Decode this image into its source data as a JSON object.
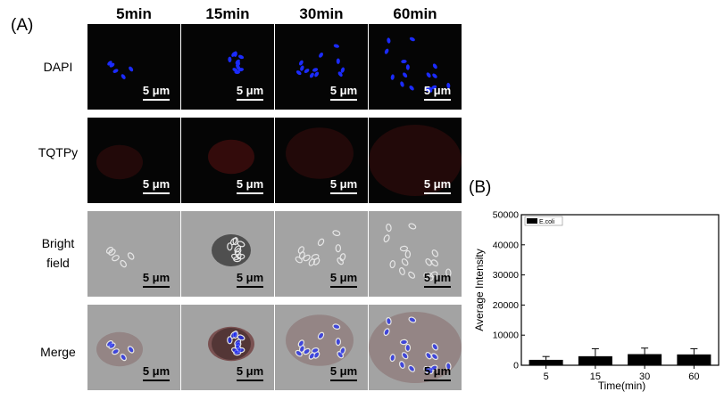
{
  "panel_a": {
    "label": "(A)",
    "columns": [
      "5min",
      "15min",
      "30min",
      "60min"
    ],
    "rows": [
      {
        "label": "DAPI",
        "channel": "blue"
      },
      {
        "label": "TQTPy",
        "channel": "red"
      },
      {
        "label": "Bright\nfield",
        "channel": "bright"
      },
      {
        "label": "Merge",
        "channel": "merge"
      }
    ],
    "scale_label": "5 μm",
    "colors": {
      "dark_bg": "#050505",
      "bright_bg": "#a3a3a3",
      "nucleus": "#1b2bff",
      "red_signal": "#5a1010"
    }
  },
  "panel_b": {
    "label": "(B)",
    "chart_data": {
      "type": "bar",
      "categories": [
        "5",
        "15",
        "30",
        "60"
      ],
      "series": [
        {
          "name": "E.coli",
          "values": [
            1800,
            3000,
            3700,
            3600
          ],
          "errors": [
            1100,
            2500,
            2000,
            1900
          ]
        }
      ],
      "xlabel": "Time(min)",
      "ylabel": "Average Intensity",
      "ylim": [
        0,
        50000
      ],
      "yticks": [
        0,
        10000,
        20000,
        30000,
        40000,
        50000
      ],
      "legend": "top-left",
      "bar_color": "#000000"
    }
  }
}
